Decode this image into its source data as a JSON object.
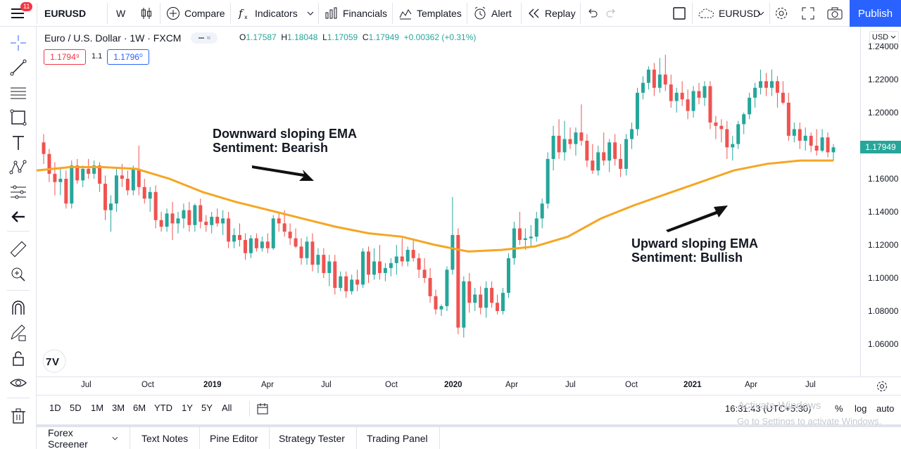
{
  "topbar": {
    "menu_badge": "11",
    "symbol": "EURUSD",
    "interval": "W",
    "compare_label": "Compare",
    "indicators_label": "Indicators",
    "financials_label": "Financials",
    "templates_label": "Templates",
    "alert_label": "Alert",
    "replay_label": "Replay",
    "layout_symbol": "EURUSD",
    "publish_label": "Publish"
  },
  "legend": {
    "title": "Euro / U.S. Dollar · 1W · FXCM",
    "open_key": "O",
    "open": "1.17587",
    "high_key": "H",
    "high": "1.18048",
    "low_key": "L",
    "low": "1.17059",
    "close_key": "C",
    "close": "1.17949",
    "change": "+0.00362 (+0.31%)",
    "sell_price": "1.1794⁹",
    "spread": "1.1",
    "buy_price": "1.1796⁰",
    "pill_symbol": "≈"
  },
  "annotations": {
    "left_line1": "Downward sloping EMA",
    "left_line2": "Sentiment: Bearish",
    "right_line1": "Upward sloping EMA",
    "right_line2": "Sentiment: Bullish"
  },
  "price_scale": {
    "currency": "USD",
    "ticks": [
      "1.24000",
      "1.22000",
      "1.20000",
      "1.18000",
      "1.16000",
      "1.14000",
      "1.12000",
      "1.10000",
      "1.08000",
      "1.06000"
    ],
    "last_price": "1.17949"
  },
  "time_axis": {
    "labels": [
      "Jul",
      "Oct",
      "2019",
      "Apr",
      "Jul",
      "Oct",
      "2020",
      "Apr",
      "Jul",
      "Oct",
      "2021",
      "Apr",
      "Jul"
    ]
  },
  "range_bar": {
    "ranges": [
      "1D",
      "5D",
      "1M",
      "3M",
      "6M",
      "YTD",
      "1Y",
      "5Y",
      "All"
    ],
    "clock": "16:31:43 (UTC+5:30)",
    "percent": "%",
    "log": "log",
    "auto": "auto"
  },
  "bottom_tabs": [
    "Forex Screener",
    "Text Notes",
    "Pine Editor",
    "Strategy Tester",
    "Trading Panel"
  ],
  "watermark": {
    "line1": "Activate Windows",
    "line2": "Go to Settings to activate Windows."
  },
  "colors": {
    "up": "#26a69a",
    "down": "#ef5350",
    "ema": "#f5a623",
    "accent": "#2962ff"
  },
  "chart_data": {
    "type": "candlestick",
    "series_name": "Euro / U.S. Dollar",
    "interval": "1W",
    "ylim": [
      1.05,
      1.245
    ],
    "candles": [
      [
        1.182,
        1.187,
        1.169,
        1.175
      ],
      [
        1.175,
        1.178,
        1.158,
        1.163
      ],
      [
        1.163,
        1.17,
        1.15,
        1.158
      ],
      [
        1.158,
        1.166,
        1.15,
        1.16
      ],
      [
        1.16,
        1.165,
        1.142,
        1.145
      ],
      [
        1.145,
        1.171,
        1.142,
        1.168
      ],
      [
        1.168,
        1.172,
        1.157,
        1.159
      ],
      [
        1.159,
        1.168,
        1.155,
        1.166
      ],
      [
        1.166,
        1.172,
        1.16,
        1.163
      ],
      [
        1.163,
        1.171,
        1.16,
        1.168
      ],
      [
        1.168,
        1.17,
        1.152,
        1.157
      ],
      [
        1.157,
        1.162,
        1.135,
        1.141
      ],
      [
        1.141,
        1.15,
        1.128,
        1.145
      ],
      [
        1.145,
        1.166,
        1.14,
        1.162
      ],
      [
        1.162,
        1.169,
        1.155,
        1.16
      ],
      [
        1.16,
        1.165,
        1.15,
        1.153
      ],
      [
        1.153,
        1.168,
        1.15,
        1.166
      ],
      [
        1.166,
        1.18,
        1.15,
        1.155
      ],
      [
        1.155,
        1.16,
        1.145,
        1.148
      ],
      [
        1.148,
        1.155,
        1.14,
        1.152
      ],
      [
        1.152,
        1.156,
        1.13,
        1.135
      ],
      [
        1.135,
        1.14,
        1.128,
        1.131
      ],
      [
        1.131,
        1.142,
        1.128,
        1.139
      ],
      [
        1.139,
        1.146,
        1.123,
        1.133
      ],
      [
        1.133,
        1.14,
        1.127,
        1.136
      ],
      [
        1.136,
        1.145,
        1.13,
        1.141
      ],
      [
        1.141,
        1.146,
        1.128,
        1.132
      ],
      [
        1.132,
        1.145,
        1.128,
        1.144
      ],
      [
        1.144,
        1.148,
        1.13,
        1.134
      ],
      [
        1.134,
        1.138,
        1.128,
        1.132
      ],
      [
        1.132,
        1.14,
        1.127,
        1.137
      ],
      [
        1.137,
        1.142,
        1.131,
        1.133
      ],
      [
        1.133,
        1.141,
        1.126,
        1.136
      ],
      [
        1.136,
        1.14,
        1.118,
        1.122
      ],
      [
        1.122,
        1.13,
        1.118,
        1.126
      ],
      [
        1.126,
        1.133,
        1.119,
        1.123
      ],
      [
        1.123,
        1.127,
        1.111,
        1.115
      ],
      [
        1.115,
        1.126,
        1.112,
        1.124
      ],
      [
        1.124,
        1.127,
        1.116,
        1.118
      ],
      [
        1.118,
        1.125,
        1.116,
        1.122
      ],
      [
        1.122,
        1.127,
        1.115,
        1.118
      ],
      [
        1.118,
        1.138,
        1.117,
        1.136
      ],
      [
        1.136,
        1.14,
        1.128,
        1.133
      ],
      [
        1.133,
        1.141,
        1.125,
        1.128
      ],
      [
        1.128,
        1.133,
        1.12,
        1.124
      ],
      [
        1.124,
        1.13,
        1.118,
        1.119
      ],
      [
        1.119,
        1.124,
        1.108,
        1.112
      ],
      [
        1.112,
        1.125,
        1.108,
        1.122
      ],
      [
        1.122,
        1.127,
        1.104,
        1.108
      ],
      [
        1.108,
        1.118,
        1.103,
        1.114
      ],
      [
        1.114,
        1.118,
        1.1,
        1.103
      ],
      [
        1.103,
        1.114,
        1.095,
        1.11
      ],
      [
        1.11,
        1.114,
        1.09,
        1.094
      ],
      [
        1.094,
        1.104,
        1.092,
        1.101
      ],
      [
        1.101,
        1.104,
        1.088,
        1.092
      ],
      [
        1.092,
        1.102,
        1.09,
        1.099
      ],
      [
        1.099,
        1.105,
        1.092,
        1.096
      ],
      [
        1.096,
        1.118,
        1.094,
        1.116
      ],
      [
        1.116,
        1.119,
        1.097,
        1.102
      ],
      [
        1.102,
        1.118,
        1.099,
        1.11
      ],
      [
        1.11,
        1.12,
        1.099,
        1.103
      ],
      [
        1.103,
        1.109,
        1.098,
        1.106
      ],
      [
        1.106,
        1.112,
        1.101,
        1.109
      ],
      [
        1.109,
        1.12,
        1.102,
        1.113
      ],
      [
        1.113,
        1.124,
        1.107,
        1.11
      ],
      [
        1.11,
        1.119,
        1.107,
        1.117
      ],
      [
        1.117,
        1.124,
        1.11,
        1.112
      ],
      [
        1.112,
        1.115,
        1.1,
        1.105
      ],
      [
        1.105,
        1.112,
        1.097,
        1.1
      ],
      [
        1.1,
        1.106,
        1.085,
        1.089
      ],
      [
        1.089,
        1.093,
        1.078,
        1.081
      ],
      [
        1.081,
        1.084,
        1.077,
        1.083
      ],
      [
        1.083,
        1.107,
        1.08,
        1.105
      ],
      [
        1.105,
        1.149,
        1.102,
        1.126
      ],
      [
        1.126,
        1.13,
        1.066,
        1.07
      ],
      [
        1.07,
        1.101,
        1.064,
        1.098
      ],
      [
        1.098,
        1.103,
        1.079,
        1.085
      ],
      [
        1.085,
        1.094,
        1.08,
        1.09
      ],
      [
        1.09,
        1.095,
        1.078,
        1.082
      ],
      [
        1.082,
        1.098,
        1.076,
        1.094
      ],
      [
        1.094,
        1.098,
        1.082,
        1.085
      ],
      [
        1.085,
        1.09,
        1.078,
        1.08
      ],
      [
        1.08,
        1.094,
        1.078,
        1.091
      ],
      [
        1.091,
        1.115,
        1.088,
        1.112
      ],
      [
        1.112,
        1.134,
        1.108,
        1.13
      ],
      [
        1.13,
        1.14,
        1.12,
        1.123
      ],
      [
        1.123,
        1.13,
        1.117,
        1.124
      ],
      [
        1.124,
        1.132,
        1.119,
        1.125
      ],
      [
        1.125,
        1.14,
        1.122,
        1.136
      ],
      [
        1.136,
        1.148,
        1.13,
        1.145
      ],
      [
        1.145,
        1.176,
        1.142,
        1.172
      ],
      [
        1.172,
        1.192,
        1.165,
        1.186
      ],
      [
        1.186,
        1.196,
        1.172,
        1.176
      ],
      [
        1.176,
        1.195,
        1.171,
        1.184
      ],
      [
        1.184,
        1.191,
        1.178,
        1.181
      ],
      [
        1.181,
        1.191,
        1.174,
        1.188
      ],
      [
        1.188,
        1.205,
        1.18,
        1.183
      ],
      [
        1.183,
        1.187,
        1.167,
        1.171
      ],
      [
        1.171,
        1.181,
        1.163,
        1.165
      ],
      [
        1.165,
        1.18,
        1.162,
        1.176
      ],
      [
        1.176,
        1.188,
        1.168,
        1.171
      ],
      [
        1.171,
        1.184,
        1.164,
        1.182
      ],
      [
        1.182,
        1.187,
        1.168,
        1.172
      ],
      [
        1.172,
        1.181,
        1.161,
        1.166
      ],
      [
        1.166,
        1.187,
        1.162,
        1.184
      ],
      [
        1.184,
        1.194,
        1.178,
        1.19
      ],
      [
        1.19,
        1.215,
        1.186,
        1.212
      ],
      [
        1.212,
        1.222,
        1.208,
        1.218
      ],
      [
        1.218,
        1.228,
        1.214,
        1.226
      ],
      [
        1.226,
        1.23,
        1.21,
        1.215
      ],
      [
        1.215,
        1.233,
        1.212,
        1.223
      ],
      [
        1.223,
        1.235,
        1.213,
        1.217
      ],
      [
        1.217,
        1.223,
        1.203,
        1.207
      ],
      [
        1.207,
        1.215,
        1.2,
        1.212
      ],
      [
        1.212,
        1.219,
        1.204,
        1.208
      ],
      [
        1.208,
        1.214,
        1.196,
        1.201
      ],
      [
        1.201,
        1.216,
        1.197,
        1.213
      ],
      [
        1.213,
        1.218,
        1.205,
        1.209
      ],
      [
        1.209,
        1.219,
        1.204,
        1.216
      ],
      [
        1.216,
        1.219,
        1.19,
        1.194
      ],
      [
        1.194,
        1.198,
        1.184,
        1.192
      ],
      [
        1.192,
        1.196,
        1.182,
        1.19
      ],
      [
        1.19,
        1.195,
        1.172,
        1.179
      ],
      [
        1.179,
        1.186,
        1.171,
        1.181
      ],
      [
        1.181,
        1.195,
        1.178,
        1.193
      ],
      [
        1.193,
        1.2,
        1.187,
        1.199
      ],
      [
        1.199,
        1.212,
        1.196,
        1.209
      ],
      [
        1.209,
        1.218,
        1.203,
        1.215
      ],
      [
        1.215,
        1.226,
        1.211,
        1.219
      ],
      [
        1.219,
        1.224,
        1.21,
        1.215
      ],
      [
        1.215,
        1.226,
        1.21,
        1.219
      ],
      [
        1.219,
        1.222,
        1.203,
        1.212
      ],
      [
        1.212,
        1.219,
        1.205,
        1.206
      ],
      [
        1.206,
        1.212,
        1.183,
        1.186
      ],
      [
        1.186,
        1.194,
        1.182,
        1.19
      ],
      [
        1.19,
        1.194,
        1.178,
        1.183
      ],
      [
        1.183,
        1.191,
        1.177,
        1.186
      ],
      [
        1.186,
        1.188,
        1.176,
        1.18
      ],
      [
        1.18,
        1.19,
        1.174,
        1.177
      ],
      [
        1.177,
        1.19,
        1.176,
        1.185
      ],
      [
        1.185,
        1.188,
        1.173,
        1.176
      ],
      [
        1.176,
        1.181,
        1.171,
        1.179
      ]
    ],
    "ema": [
      1.165,
      1.167,
      1.167,
      1.166,
      1.16,
      1.152,
      1.146,
      1.141,
      1.136,
      1.131,
      1.127,
      1.125,
      1.12,
      1.116,
      1.117,
      1.119,
      1.125,
      1.136,
      1.144,
      1.151,
      1.158,
      1.165,
      1.169,
      1.171,
      1.171
    ]
  }
}
